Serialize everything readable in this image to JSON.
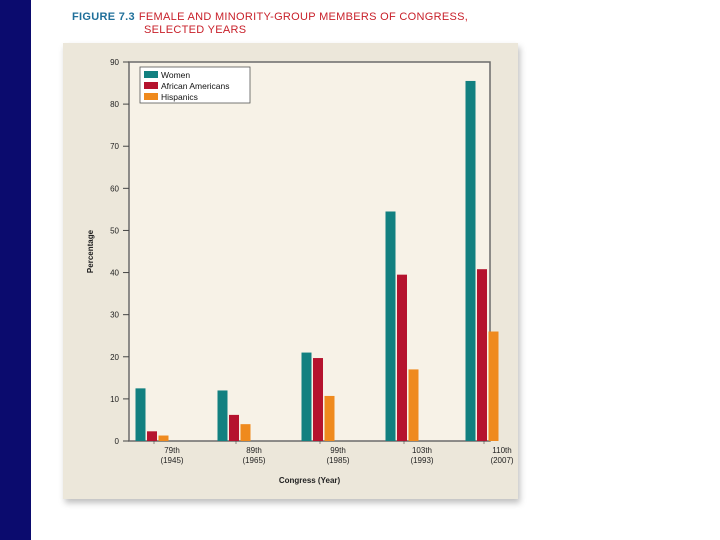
{
  "figure": {
    "number": "FIGURE 7.3",
    "title_line1": "FEMALE AND MINORITY-GROUP MEMBERS OF CONGRESS,",
    "title_line2": "SELECTED YEARS"
  },
  "colors": {
    "left_bar": "#0b0b6e",
    "panel": "#ece7da",
    "plot": "#f7f2e7"
  },
  "chart_data": {
    "type": "bar",
    "title": "FEMALE AND MINORITY-GROUP MEMBERS OF CONGRESS, SELECTED YEARS",
    "xlabel": "Congress (Year)",
    "ylabel": "Percentage",
    "ylim": [
      0,
      90
    ],
    "yticks": [
      0,
      10,
      20,
      30,
      40,
      50,
      60,
      70,
      80,
      90
    ],
    "categories": [
      {
        "name": "79th",
        "year": "(1945)"
      },
      {
        "name": "89th",
        "year": "(1965)"
      },
      {
        "name": "99th",
        "year": "(1985)"
      },
      {
        "name": "103th",
        "year": "(1993)"
      },
      {
        "name": "110th",
        "year": "(2007)"
      }
    ],
    "series": [
      {
        "name": "Women",
        "color": "#128080",
        "values": [
          12.5,
          12,
          21,
          54.5,
          85.5
        ]
      },
      {
        "name": "African Americans",
        "color": "#b5132e",
        "values": [
          2.3,
          6.2,
          19.7,
          39.5,
          40.8
        ]
      },
      {
        "name": "Hispanics",
        "color": "#ef8a1e",
        "values": [
          1.3,
          4,
          10.7,
          17,
          26
        ]
      }
    ],
    "legend_position": "top-left",
    "grid": false
  }
}
